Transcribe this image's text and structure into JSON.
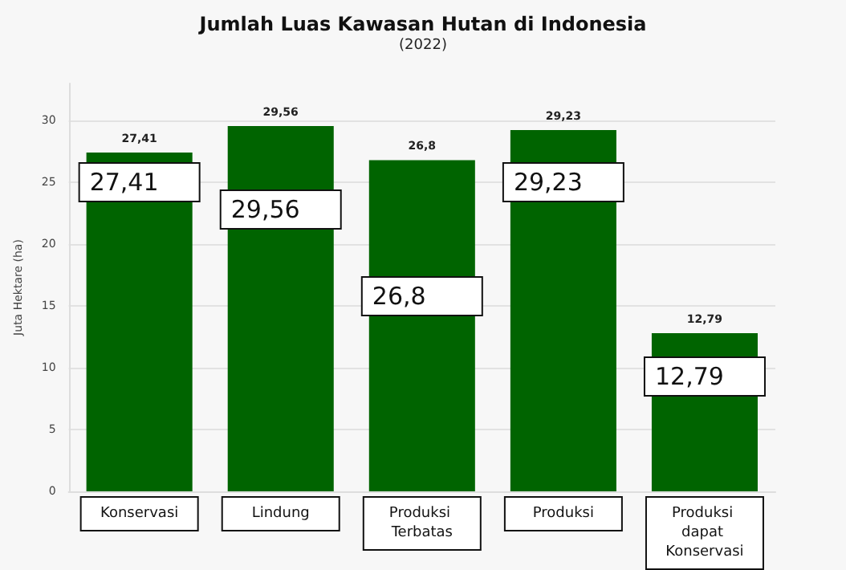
{
  "chart_data": {
    "type": "bar",
    "title": "Jumlah Luas Kawasan Hutan di Indonesia",
    "subtitle": "(2022)",
    "ylabel": "Juta Hektare (ha)",
    "categories": [
      "Konservasi",
      "Lindung",
      "Produksi Terbatas",
      "Produksi",
      "Produksi dapat Konservasi"
    ],
    "values": [
      27.41,
      29.56,
      26.8,
      29.23,
      12.79
    ],
    "color": "#006400",
    "value_labels": [
      "27,41",
      "29,56",
      "26,8",
      "29,23",
      "12,79"
    ],
    "annotations": [
      "27,41",
      "29,56",
      "26,8",
      "29,23",
      "12,79"
    ],
    "ylim": [
      0,
      33
    ],
    "yticks": [
      0,
      5,
      10,
      15,
      20,
      25,
      30
    ],
    "grid": "y"
  }
}
